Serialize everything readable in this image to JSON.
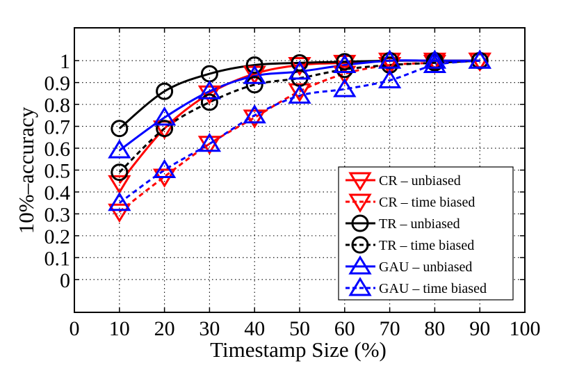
{
  "chart_data": {
    "type": "line",
    "title": "",
    "xlabel": "Timestamp Size (%)",
    "ylabel": "10%–accuracy",
    "xlim": [
      0,
      100
    ],
    "ylim": [
      -0.15,
      1.15
    ],
    "x_ticks": [
      0,
      10,
      20,
      30,
      40,
      50,
      60,
      70,
      80,
      90,
      100
    ],
    "x_tick_labels": [
      "0",
      "10",
      "20",
      "30",
      "40",
      "50",
      "60",
      "70",
      "80",
      "90",
      "100"
    ],
    "y_ticks": [
      0,
      0.1,
      0.2,
      0.3,
      0.4,
      0.5,
      0.6,
      0.7,
      0.8,
      0.9,
      1
    ],
    "y_tick_labels": [
      "0",
      "0.1",
      "0.2",
      "0.3",
      "0.4",
      "0.5",
      "0.6",
      "0.7",
      "0.8",
      "0.9",
      "1"
    ],
    "grid": true,
    "legend_position": "bottom-right",
    "x": [
      10,
      20,
      30,
      40,
      50,
      60,
      70,
      80,
      90
    ],
    "series": [
      {
        "name": "CR – unbiased",
        "color": "#ff0000",
        "dash": "solid",
        "marker": "triangle-down",
        "values": [
          0.44,
          0.69,
          0.85,
          0.94,
          0.98,
          0.99,
          1.0,
          1.0,
          1.0
        ]
      },
      {
        "name": "CR – time biased",
        "color": "#ff0000",
        "dash": "dashed",
        "marker": "triangle-down",
        "values": [
          0.31,
          0.47,
          0.62,
          0.74,
          0.86,
          0.94,
          0.98,
          0.99,
          1.0
        ]
      },
      {
        "name": "TR – unbiased",
        "color": "#000000",
        "dash": "solid",
        "marker": "circle",
        "values": [
          0.69,
          0.86,
          0.94,
          0.98,
          0.99,
          0.995,
          1.0,
          1.0,
          1.0
        ]
      },
      {
        "name": "TR – time biased",
        "color": "#000000",
        "dash": "dashed",
        "marker": "circle",
        "values": [
          0.49,
          0.69,
          0.81,
          0.89,
          0.92,
          0.96,
          0.98,
          0.99,
          1.0
        ]
      },
      {
        "name": "GAU – unbiased",
        "color": "#0000ff",
        "dash": "solid",
        "marker": "triangle-up",
        "values": [
          0.59,
          0.74,
          0.86,
          0.93,
          0.95,
          0.98,
          1.0,
          1.0,
          1.0
        ]
      },
      {
        "name": "GAU – time biased",
        "color": "#0000ff",
        "dash": "dashed",
        "marker": "triangle-up",
        "values": [
          0.35,
          0.5,
          0.62,
          0.75,
          0.84,
          0.87,
          0.91,
          0.98,
          1.0
        ]
      }
    ]
  }
}
